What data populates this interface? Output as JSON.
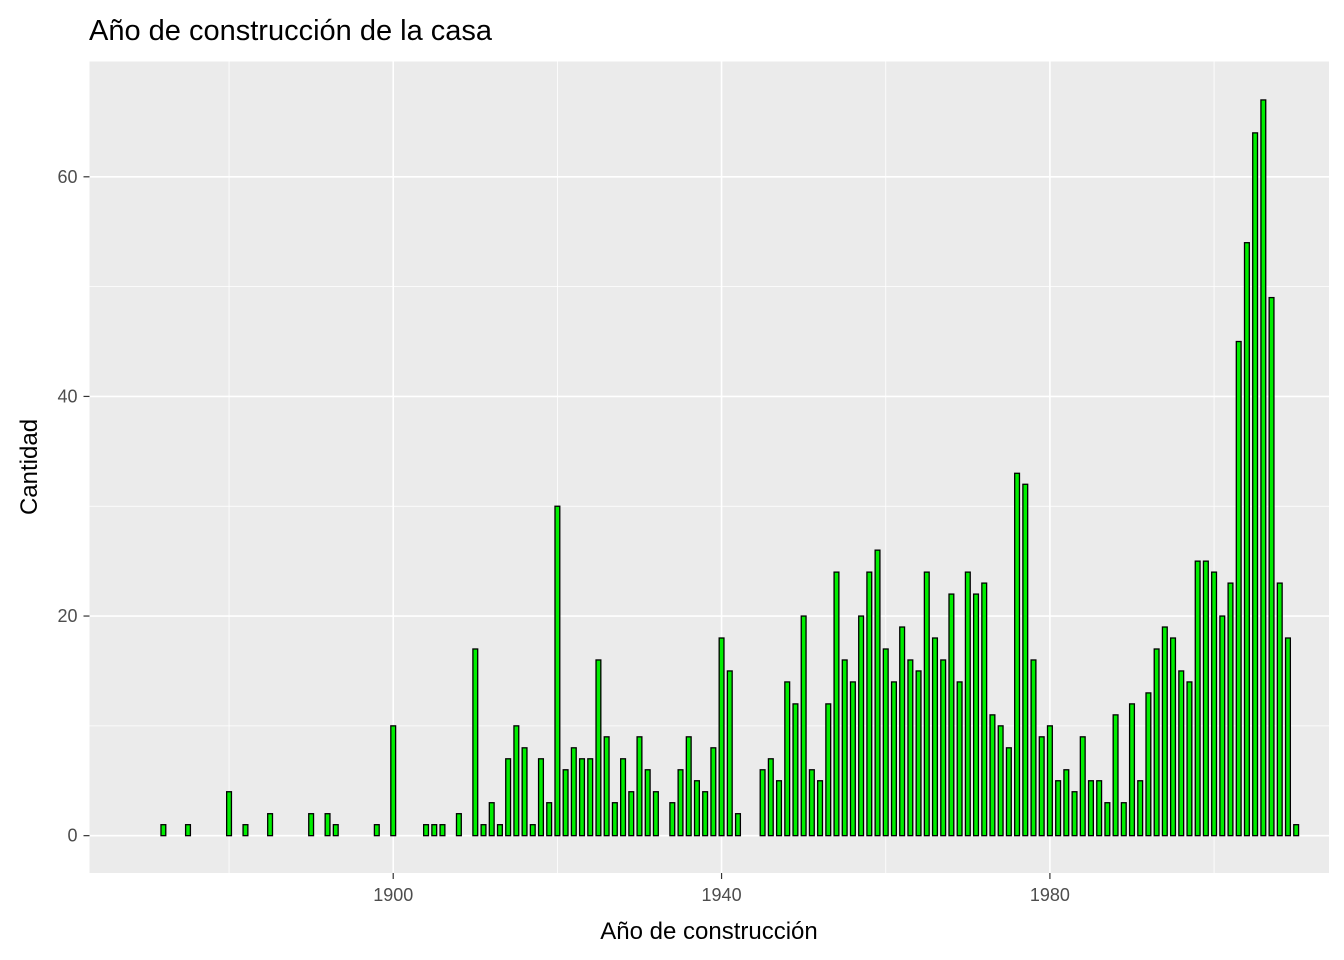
{
  "chart_data": {
    "type": "bar",
    "title": "Año de construcción de la casa",
    "xlabel": "Año de construcción",
    "ylabel": "Cantidad",
    "xlim": [
      1863,
      2014
    ],
    "ylim": [
      -3.4,
      70.5
    ],
    "x_ticks": [
      1900,
      1940,
      1980
    ],
    "y_ticks": [
      0,
      20,
      40,
      60
    ],
    "x_minor_ticks": [
      1880,
      1920,
      1960,
      2000
    ],
    "y_minor_ticks": [
      10,
      30,
      50
    ],
    "grid": true,
    "legend": "none",
    "colors": {
      "bar_fill": "#00ee00",
      "bar_stroke": "#000000",
      "panel_background": "#ebebeb",
      "grid": "#ffffff"
    },
    "x": [
      1872,
      1875,
      1880,
      1882,
      1885,
      1890,
      1892,
      1893,
      1898,
      1900,
      1904,
      1905,
      1906,
      1908,
      1910,
      1911,
      1912,
      1913,
      1914,
      1915,
      1916,
      1917,
      1918,
      1919,
      1920,
      1921,
      1922,
      1923,
      1924,
      1925,
      1926,
      1927,
      1928,
      1929,
      1930,
      1931,
      1932,
      1934,
      1935,
      1936,
      1937,
      1938,
      1939,
      1940,
      1941,
      1942,
      1945,
      1946,
      1947,
      1948,
      1949,
      1950,
      1951,
      1952,
      1953,
      1954,
      1955,
      1956,
      1957,
      1958,
      1959,
      1960,
      1961,
      1962,
      1963,
      1964,
      1965,
      1966,
      1967,
      1968,
      1969,
      1970,
      1971,
      1972,
      1973,
      1974,
      1975,
      1976,
      1977,
      1978,
      1979,
      1980,
      1981,
      1982,
      1983,
      1984,
      1985,
      1986,
      1987,
      1988,
      1989,
      1990,
      1991,
      1992,
      1993,
      1994,
      1995,
      1996,
      1997,
      1998,
      1999,
      2000,
      2001,
      2002,
      2003,
      2004,
      2005,
      2006,
      2007,
      2008,
      2009,
      2010
    ],
    "values": [
      1,
      1,
      4,
      1,
      2,
      2,
      2,
      1,
      1,
      10,
      1,
      1,
      1,
      2,
      17,
      1,
      3,
      1,
      7,
      10,
      8,
      1,
      7,
      3,
      30,
      6,
      8,
      7,
      7,
      16,
      9,
      3,
      7,
      4,
      9,
      6,
      4,
      3,
      6,
      9,
      5,
      4,
      8,
      18,
      15,
      2,
      6,
      7,
      5,
      14,
      12,
      20,
      6,
      5,
      12,
      24,
      16,
      14,
      20,
      24,
      26,
      17,
      14,
      19,
      16,
      15,
      24,
      18,
      16,
      22,
      14,
      24,
      22,
      23,
      11,
      10,
      8,
      33,
      32,
      16,
      9,
      10,
      5,
      6,
      4,
      9,
      5,
      5,
      3,
      11,
      3,
      12,
      5,
      13,
      17,
      19,
      18,
      15,
      14,
      25,
      25,
      24,
      20,
      23,
      45,
      54,
      64,
      67,
      49,
      23,
      18,
      1
    ]
  }
}
